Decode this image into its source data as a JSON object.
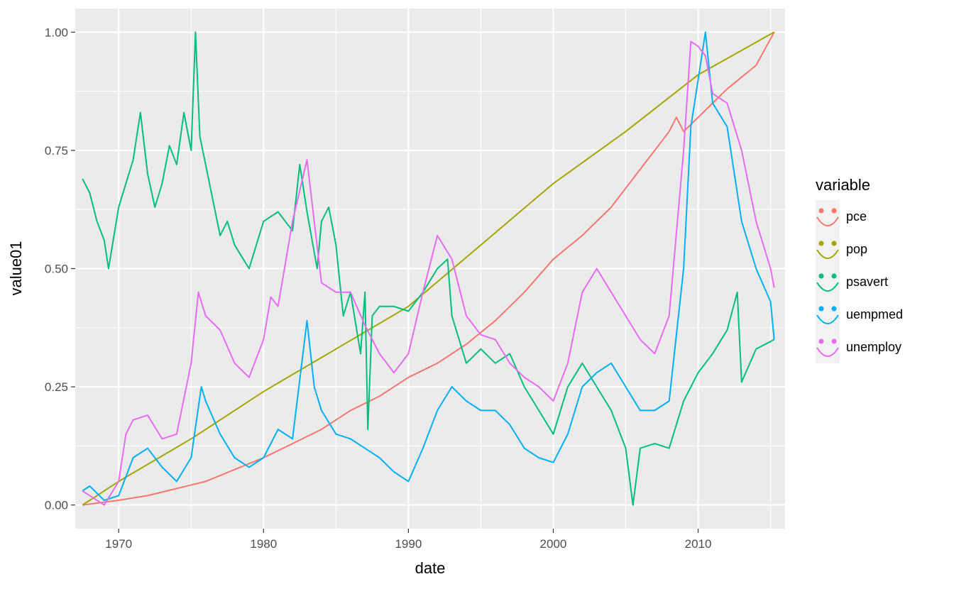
{
  "chart_data": {
    "type": "line",
    "xlabel": "date",
    "ylabel": "value01",
    "xlim": [
      1967.0,
      2016.0
    ],
    "ylim": [
      -0.05,
      1.05
    ],
    "x_ticks": [
      1970,
      1980,
      1990,
      2000,
      2010
    ],
    "x_tick_labels": [
      "1970",
      "1980",
      "1990",
      "2000",
      "2010"
    ],
    "y_ticks": [
      0,
      0.25,
      0.5,
      0.75,
      1.0
    ],
    "y_tick_labels": [
      "0.00",
      "0.25",
      "0.50",
      "0.75",
      "1.00"
    ],
    "grid": true,
    "legend": {
      "title": "variable",
      "position": "right"
    },
    "series": [
      {
        "name": "pce",
        "color": "#F8766D",
        "points": [
          [
            1967.5,
            0.0
          ],
          [
            1970,
            0.01
          ],
          [
            1972,
            0.02
          ],
          [
            1974,
            0.035
          ],
          [
            1976,
            0.05
          ],
          [
            1978,
            0.075
          ],
          [
            1980,
            0.1
          ],
          [
            1982,
            0.13
          ],
          [
            1984,
            0.16
          ],
          [
            1986,
            0.2
          ],
          [
            1988,
            0.23
          ],
          [
            1990,
            0.27
          ],
          [
            1992,
            0.3
          ],
          [
            1994,
            0.34
          ],
          [
            1996,
            0.39
          ],
          [
            1998,
            0.45
          ],
          [
            2000,
            0.52
          ],
          [
            2002,
            0.57
          ],
          [
            2004,
            0.63
          ],
          [
            2006,
            0.71
          ],
          [
            2008,
            0.79
          ],
          [
            2008.5,
            0.82
          ],
          [
            2009,
            0.79
          ],
          [
            2010,
            0.82
          ],
          [
            2012,
            0.88
          ],
          [
            2014,
            0.93
          ],
          [
            2015.25,
            1.0
          ]
        ]
      },
      {
        "name": "pop",
        "color": "#A3A500",
        "points": [
          [
            1967.5,
            0.0
          ],
          [
            1970,
            0.05
          ],
          [
            1975,
            0.14
          ],
          [
            1980,
            0.24
          ],
          [
            1985,
            0.33
          ],
          [
            1990,
            0.42
          ],
          [
            1995,
            0.55
          ],
          [
            2000,
            0.68
          ],
          [
            2005,
            0.79
          ],
          [
            2010,
            0.91
          ],
          [
            2015.25,
            1.0
          ]
        ]
      },
      {
        "name": "psavert",
        "color": "#00BF7D",
        "points": [
          [
            1967.5,
            0.69
          ],
          [
            1968,
            0.66
          ],
          [
            1968.5,
            0.6
          ],
          [
            1969,
            0.56
          ],
          [
            1969.3,
            0.5
          ],
          [
            1970,
            0.63
          ],
          [
            1971,
            0.73
          ],
          [
            1971.5,
            0.83
          ],
          [
            1972,
            0.7
          ],
          [
            1972.5,
            0.63
          ],
          [
            1973,
            0.68
          ],
          [
            1973.5,
            0.76
          ],
          [
            1974,
            0.72
          ],
          [
            1974.5,
            0.83
          ],
          [
            1975,
            0.75
          ],
          [
            1975.3,
            1.0
          ],
          [
            1975.6,
            0.78
          ],
          [
            1976,
            0.72
          ],
          [
            1977,
            0.57
          ],
          [
            1977.5,
            0.6
          ],
          [
            1978,
            0.55
          ],
          [
            1979,
            0.5
          ],
          [
            1980,
            0.6
          ],
          [
            1981,
            0.62
          ],
          [
            1982,
            0.58
          ],
          [
            1982.5,
            0.72
          ],
          [
            1983,
            0.62
          ],
          [
            1983.7,
            0.5
          ],
          [
            1984,
            0.6
          ],
          [
            1984.5,
            0.63
          ],
          [
            1985,
            0.55
          ],
          [
            1985.5,
            0.4
          ],
          [
            1986,
            0.45
          ],
          [
            1986.7,
            0.32
          ],
          [
            1987,
            0.45
          ],
          [
            1987.2,
            0.16
          ],
          [
            1987.5,
            0.4
          ],
          [
            1988,
            0.42
          ],
          [
            1989,
            0.42
          ],
          [
            1990,
            0.41
          ],
          [
            1991,
            0.45
          ],
          [
            1992,
            0.5
          ],
          [
            1992.7,
            0.52
          ],
          [
            1993,
            0.4
          ],
          [
            1994,
            0.3
          ],
          [
            1995,
            0.33
          ],
          [
            1996,
            0.3
          ],
          [
            1997,
            0.32
          ],
          [
            1998,
            0.25
          ],
          [
            1999,
            0.2
          ],
          [
            2000,
            0.15
          ],
          [
            2001,
            0.25
          ],
          [
            2002,
            0.3
          ],
          [
            2003,
            0.25
          ],
          [
            2004,
            0.2
          ],
          [
            2005,
            0.12
          ],
          [
            2005.5,
            0.0
          ],
          [
            2006,
            0.12
          ],
          [
            2007,
            0.13
          ],
          [
            2008,
            0.12
          ],
          [
            2009,
            0.22
          ],
          [
            2010,
            0.28
          ],
          [
            2011,
            0.32
          ],
          [
            2012,
            0.37
          ],
          [
            2012.7,
            0.45
          ],
          [
            2013,
            0.26
          ],
          [
            2014,
            0.33
          ],
          [
            2015.25,
            0.35
          ]
        ]
      },
      {
        "name": "uempmed",
        "color": "#00B0F6",
        "points": [
          [
            1967.5,
            0.03
          ],
          [
            1968,
            0.04
          ],
          [
            1969,
            0.01
          ],
          [
            1970,
            0.02
          ],
          [
            1971,
            0.1
          ],
          [
            1972,
            0.12
          ],
          [
            1973,
            0.08
          ],
          [
            1974,
            0.05
          ],
          [
            1975,
            0.1
          ],
          [
            1975.7,
            0.25
          ],
          [
            1976,
            0.22
          ],
          [
            1977,
            0.15
          ],
          [
            1978,
            0.1
          ],
          [
            1979,
            0.08
          ],
          [
            1980,
            0.1
          ],
          [
            1981,
            0.16
          ],
          [
            1982,
            0.14
          ],
          [
            1983,
            0.39
          ],
          [
            1983.5,
            0.25
          ],
          [
            1984,
            0.2
          ],
          [
            1985,
            0.15
          ],
          [
            1986,
            0.14
          ],
          [
            1987,
            0.12
          ],
          [
            1988,
            0.1
          ],
          [
            1989,
            0.07
          ],
          [
            1990,
            0.05
          ],
          [
            1991,
            0.12
          ],
          [
            1992,
            0.2
          ],
          [
            1993,
            0.25
          ],
          [
            1994,
            0.22
          ],
          [
            1995,
            0.2
          ],
          [
            1996,
            0.2
          ],
          [
            1997,
            0.17
          ],
          [
            1998,
            0.12
          ],
          [
            1999,
            0.1
          ],
          [
            2000,
            0.09
          ],
          [
            2001,
            0.15
          ],
          [
            2002,
            0.25
          ],
          [
            2003,
            0.28
          ],
          [
            2004,
            0.3
          ],
          [
            2005,
            0.25
          ],
          [
            2006,
            0.2
          ],
          [
            2007,
            0.2
          ],
          [
            2008,
            0.22
          ],
          [
            2009,
            0.5
          ],
          [
            2009.5,
            0.8
          ],
          [
            2010,
            0.9
          ],
          [
            2010.5,
            1.0
          ],
          [
            2011,
            0.85
          ],
          [
            2012,
            0.8
          ],
          [
            2012.5,
            0.7
          ],
          [
            2013,
            0.6
          ],
          [
            2014,
            0.5
          ],
          [
            2015,
            0.43
          ],
          [
            2015.25,
            0.35
          ]
        ]
      },
      {
        "name": "unemploy",
        "color": "#E76BF3",
        "points": [
          [
            1967.5,
            0.03
          ],
          [
            1968,
            0.02
          ],
          [
            1969,
            0.0
          ],
          [
            1970,
            0.05
          ],
          [
            1970.5,
            0.15
          ],
          [
            1971,
            0.18
          ],
          [
            1972,
            0.19
          ],
          [
            1973,
            0.14
          ],
          [
            1974,
            0.15
          ],
          [
            1975,
            0.3
          ],
          [
            1975.5,
            0.45
          ],
          [
            1976,
            0.4
          ],
          [
            1977,
            0.37
          ],
          [
            1978,
            0.3
          ],
          [
            1979,
            0.27
          ],
          [
            1980,
            0.35
          ],
          [
            1980.5,
            0.44
          ],
          [
            1981,
            0.42
          ],
          [
            1982,
            0.6
          ],
          [
            1983,
            0.73
          ],
          [
            1983.5,
            0.6
          ],
          [
            1984,
            0.47
          ],
          [
            1985,
            0.45
          ],
          [
            1986,
            0.45
          ],
          [
            1987,
            0.38
          ],
          [
            1988,
            0.32
          ],
          [
            1989,
            0.28
          ],
          [
            1990,
            0.32
          ],
          [
            1991,
            0.45
          ],
          [
            1992,
            0.57
          ],
          [
            1993,
            0.52
          ],
          [
            1994,
            0.4
          ],
          [
            1995,
            0.36
          ],
          [
            1996,
            0.35
          ],
          [
            1997,
            0.3
          ],
          [
            1998,
            0.27
          ],
          [
            1999,
            0.25
          ],
          [
            2000,
            0.22
          ],
          [
            2001,
            0.3
          ],
          [
            2002,
            0.45
          ],
          [
            2003,
            0.5
          ],
          [
            2004,
            0.45
          ],
          [
            2005,
            0.4
          ],
          [
            2006,
            0.35
          ],
          [
            2007,
            0.32
          ],
          [
            2008,
            0.4
          ],
          [
            2009,
            0.75
          ],
          [
            2009.5,
            0.98
          ],
          [
            2010,
            0.97
          ],
          [
            2010.5,
            0.95
          ],
          [
            2011,
            0.87
          ],
          [
            2012,
            0.85
          ],
          [
            2013,
            0.75
          ],
          [
            2014,
            0.6
          ],
          [
            2015,
            0.5
          ],
          [
            2015.25,
            0.46
          ]
        ]
      }
    ]
  }
}
